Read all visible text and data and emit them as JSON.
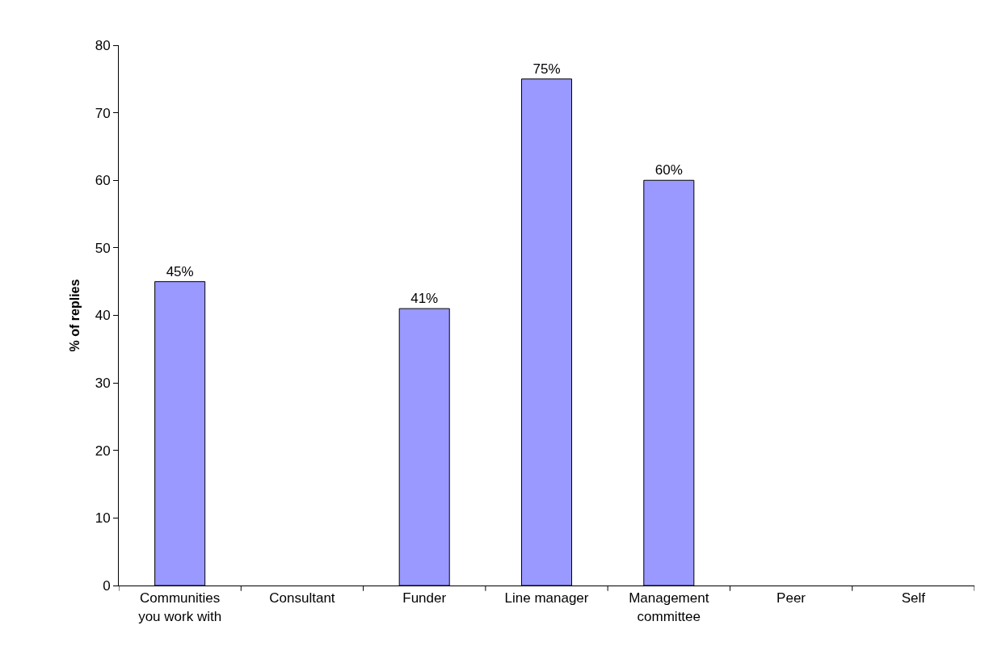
{
  "chart_data": {
    "type": "bar",
    "ylabel": "% of replies",
    "categories": [
      "Communities you work with",
      "Consultant",
      "Funder",
      "Line manager",
      "Management committee",
      "Peer",
      "Self"
    ],
    "values": [
      45,
      null,
      41,
      75,
      60,
      null,
      null
    ],
    "value_labels": [
      "45%",
      null,
      "41%",
      "75%",
      "60%",
      null,
      null
    ],
    "color": "#9999ff",
    "ylim": [
      0,
      80
    ],
    "yticks": [
      0,
      10,
      20,
      30,
      40,
      50,
      60,
      70,
      80
    ],
    "legend": false
  }
}
